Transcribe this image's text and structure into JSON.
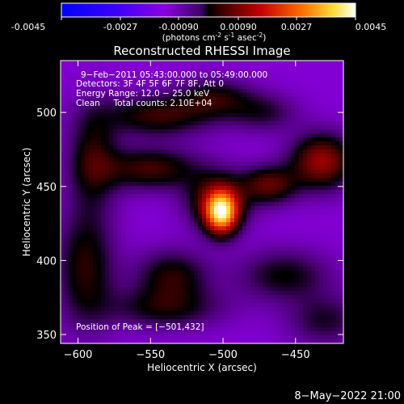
{
  "colorbar": {
    "ticks": [
      "-0.0045",
      "-0.0027",
      "-0.00090",
      "0.00090",
      "0.0027",
      "0.0045"
    ],
    "units_main": "(photons cm",
    "units_exp1": "-2",
    "units_mid": " s",
    "units_exp2": "-1",
    "units_end": " asec",
    "units_exp3": "-2",
    "units_close": ")",
    "range": [
      -0.0045,
      0.0045
    ]
  },
  "chart_data": {
    "type": "heatmap",
    "title": "Reconstructed RHESSI Image",
    "xlabel": "Heliocentric X (arcsec)",
    "ylabel": "Heliocentric Y (arcsec)",
    "xlim": [
      -612,
      -417
    ],
    "ylim": [
      344,
      535
    ],
    "xticks": [
      {
        "value": -600,
        "label": "−600"
      },
      {
        "value": -550,
        "label": "−550"
      },
      {
        "value": -500,
        "label": "−500"
      },
      {
        "value": -450,
        "label": "−450"
      }
    ],
    "yticks": [
      {
        "value": 350,
        "label": "350"
      },
      {
        "value": 400,
        "label": "400"
      },
      {
        "value": 450,
        "label": "450"
      },
      {
        "value": 500,
        "label": "500"
      }
    ],
    "annotations": [
      "9−Feb−2011 05:43:00.000 to 05:49:00.000",
      "Detectors: 3F 4F 5F 6F 7F 8F, Att 0",
      "Energy Range: 12.0 − 25.0 keV",
      "Clean     Total counts: 2.10E+04"
    ],
    "peak_label": "Position of Peak = [−501,432]",
    "peak": {
      "x": -501,
      "y": 432
    },
    "sources": [
      {
        "x": -501,
        "y": 432,
        "sx": 8,
        "sy": 10,
        "amp": 1.0
      },
      {
        "x": -504,
        "y": 441,
        "sx": 15,
        "sy": 13,
        "amp": 0.42
      },
      {
        "x": -432,
        "y": 467,
        "sx": 15,
        "sy": 13,
        "amp": 0.55
      },
      {
        "x": -468,
        "y": 451,
        "sx": 13,
        "sy": 9,
        "amp": 0.42
      },
      {
        "x": -550,
        "y": 462,
        "sx": 24,
        "sy": 10,
        "amp": 0.38
      },
      {
        "x": -545,
        "y": 498,
        "sx": 26,
        "sy": 10,
        "amp": 0.36
      },
      {
        "x": -505,
        "y": 510,
        "sx": 18,
        "sy": 9,
        "amp": 0.3
      },
      {
        "x": -590,
        "y": 470,
        "sx": 12,
        "sy": 24,
        "amp": 0.32
      },
      {
        "x": -595,
        "y": 395,
        "sx": 14,
        "sy": 28,
        "amp": 0.34
      },
      {
        "x": -535,
        "y": 390,
        "sx": 18,
        "sy": 12,
        "amp": 0.32
      },
      {
        "x": -540,
        "y": 368,
        "sx": 28,
        "sy": 10,
        "amp": 0.28
      },
      {
        "x": -458,
        "y": 390,
        "sx": 22,
        "sy": 12,
        "amp": 0.28
      },
      {
        "x": -430,
        "y": 360,
        "sx": 18,
        "sy": 12,
        "amp": 0.24
      },
      {
        "x": -472,
        "y": 500,
        "sx": 16,
        "sy": 9,
        "amp": 0.22
      }
    ],
    "background": -0.28
  },
  "footer": {
    "timestamp": "8−May−2022 21:00"
  }
}
